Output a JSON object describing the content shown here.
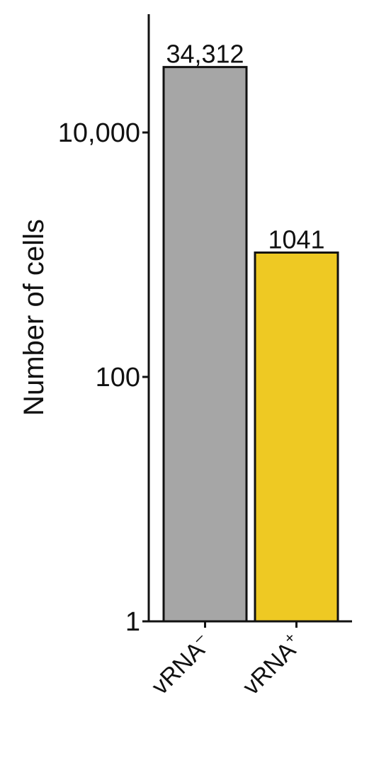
{
  "chart_data": {
    "type": "bar",
    "title": "",
    "xlabel": "",
    "ylabel": "Number of cells",
    "yscale": "log",
    "ylim": [
      1,
      34312
    ],
    "yticks": [
      {
        "value": 1,
        "label": "1"
      },
      {
        "value": 100,
        "label": "100"
      },
      {
        "value": 10000,
        "label": "10,000"
      }
    ],
    "categories": [
      {
        "base": "vRNA",
        "sup": "–"
      },
      {
        "base": "vRNA",
        "sup": "+"
      }
    ],
    "values": [
      34312,
      1041
    ],
    "value_labels": [
      "34,312",
      "1041"
    ],
    "colors": [
      "#a6a6a6",
      "#eec923"
    ],
    "grid": false,
    "legend": "none"
  }
}
